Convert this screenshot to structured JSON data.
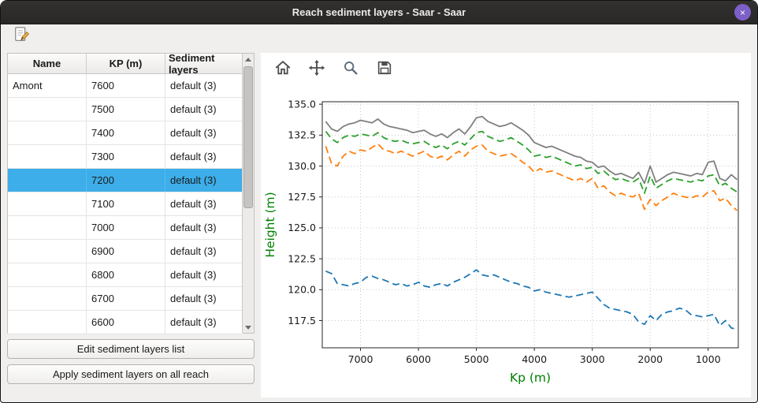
{
  "window": {
    "title": "Reach sediment layers - Saar - Saar",
    "close_glyph": "×"
  },
  "main_toolbar": {
    "edit_icon": "edit-note-icon"
  },
  "table": {
    "columns": [
      "Name",
      "KP (m)",
      "Sediment layers"
    ],
    "selected_index": 4,
    "rows": [
      {
        "name": "Amont",
        "kp": "7600",
        "layers": "default (3)",
        "selected": false
      },
      {
        "name": "",
        "kp": "7500",
        "layers": "default (3)",
        "selected": false
      },
      {
        "name": "",
        "kp": "7400",
        "layers": "default (3)",
        "selected": false
      },
      {
        "name": "",
        "kp": "7300",
        "layers": "default (3)",
        "selected": false
      },
      {
        "name": "",
        "kp": "7200",
        "layers": "default (3)",
        "selected": true
      },
      {
        "name": "",
        "kp": "7100",
        "layers": "default (3)",
        "selected": false
      },
      {
        "name": "",
        "kp": "7000",
        "layers": "default (3)",
        "selected": false
      },
      {
        "name": "",
        "kp": "6900",
        "layers": "default (3)",
        "selected": false
      },
      {
        "name": "",
        "kp": "6800",
        "layers": "default (3)",
        "selected": false
      },
      {
        "name": "",
        "kp": "6700",
        "layers": "default (3)",
        "selected": false
      },
      {
        "name": "",
        "kp": "6600",
        "layers": "default (3)",
        "selected": false
      }
    ]
  },
  "buttons": {
    "edit": "Edit sediment layers list",
    "apply": "Apply sediment layers on all reach"
  },
  "plot_toolbar": {
    "icons": [
      "home-icon",
      "pan-icon",
      "zoom-icon",
      "save-icon"
    ]
  },
  "chart_data": {
    "type": "line",
    "title": "",
    "xlabel": "Kp (m)",
    "ylabel": "Height (m)",
    "axis_label_color": "#008000",
    "tick_label_color": "#1a1a1a",
    "grid": true,
    "x_inverted": true,
    "xlim": [
      7660,
      480
    ],
    "ylim": [
      115.3,
      135.2
    ],
    "x_ticks": [
      7000,
      6000,
      5000,
      4000,
      3000,
      2000,
      1000
    ],
    "y_ticks": [
      117.5,
      120.0,
      122.5,
      125.0,
      127.5,
      130.0,
      132.5,
      135.0
    ],
    "x": [
      7600,
      7500,
      7400,
      7300,
      7200,
      7100,
      7000,
      6900,
      6800,
      6700,
      6600,
      6500,
      6400,
      6300,
      6200,
      6100,
      6000,
      5900,
      5800,
      5700,
      5600,
      5500,
      5400,
      5300,
      5200,
      5100,
      5000,
      4900,
      4800,
      4700,
      4600,
      4500,
      4400,
      4300,
      4200,
      4100,
      4000,
      3900,
      3800,
      3700,
      3600,
      3500,
      3400,
      3300,
      3200,
      3100,
      3000,
      2900,
      2800,
      2700,
      2600,
      2500,
      2400,
      2300,
      2200,
      2100,
      2000,
      1900,
      1800,
      1700,
      1600,
      1500,
      1400,
      1300,
      1200,
      1100,
      1000,
      900,
      800,
      700,
      600,
      500
    ],
    "series": [
      {
        "name": "top-level-gray",
        "color": "#7f7f7f",
        "style": "solid",
        "values": [
          133.6,
          133.0,
          132.8,
          133.2,
          133.4,
          133.5,
          133.7,
          133.6,
          133.5,
          133.8,
          133.4,
          133.2,
          133.1,
          133.0,
          132.9,
          132.7,
          132.8,
          132.9,
          132.6,
          132.4,
          132.6,
          132.3,
          132.7,
          133.0,
          132.6,
          133.2,
          133.9,
          134.0,
          133.6,
          133.4,
          133.2,
          133.3,
          133.5,
          133.2,
          132.9,
          132.5,
          131.9,
          131.7,
          131.5,
          131.6,
          131.4,
          131.2,
          131.0,
          130.8,
          130.7,
          130.4,
          130.3,
          129.9,
          130.0,
          129.6,
          129.3,
          129.4,
          129.2,
          129.0,
          129.5,
          128.6,
          130.0,
          128.7,
          129.0,
          129.3,
          129.5,
          129.4,
          129.3,
          129.2,
          129.4,
          129.3,
          130.3,
          130.4,
          129.0,
          128.8,
          129.3,
          128.9
        ]
      },
      {
        "name": "layer-green",
        "color": "#2ca02c",
        "style": "dashed",
        "values": [
          132.8,
          132.2,
          131.9,
          132.3,
          132.5,
          132.4,
          132.6,
          132.5,
          132.4,
          132.7,
          132.3,
          132.1,
          132.0,
          132.1,
          131.9,
          131.8,
          131.9,
          132.0,
          131.7,
          131.5,
          131.7,
          131.4,
          131.8,
          132.0,
          131.7,
          132.2,
          132.7,
          132.8,
          132.4,
          132.2,
          132.0,
          132.1,
          132.3,
          132.0,
          131.7,
          131.3,
          130.8,
          130.9,
          130.7,
          130.8,
          130.6,
          130.4,
          130.2,
          130.0,
          130.1,
          129.8,
          129.9,
          129.4,
          129.6,
          129.2,
          128.9,
          129.0,
          128.8,
          128.7,
          129.0,
          127.8,
          129.2,
          128.2,
          128.5,
          128.8,
          129.0,
          128.9,
          128.8,
          128.7,
          128.9,
          128.8,
          129.2,
          129.3,
          128.4,
          128.6,
          128.2,
          127.9
        ]
      },
      {
        "name": "layer-orange",
        "color": "#ff7f0e",
        "style": "dashed",
        "values": [
          131.6,
          130.2,
          130.0,
          130.8,
          131.2,
          131.0,
          131.3,
          131.2,
          131.5,
          131.8,
          131.3,
          131.2,
          131.0,
          131.2,
          131.0,
          130.8,
          131.0,
          131.2,
          130.8,
          130.6,
          130.8,
          130.5,
          130.9,
          131.2,
          130.8,
          131.3,
          131.6,
          131.7,
          131.2,
          131.0,
          130.8,
          130.9,
          131.0,
          130.7,
          130.3,
          130.0,
          129.5,
          129.8,
          129.5,
          129.6,
          129.4,
          129.2,
          129.0,
          128.8,
          129.0,
          128.7,
          129.0,
          128.2,
          128.4,
          127.9,
          127.6,
          127.8,
          127.6,
          127.5,
          127.8,
          126.5,
          127.3,
          126.8,
          127.2,
          127.5,
          127.8,
          127.6,
          127.5,
          127.4,
          127.6,
          127.5,
          127.9,
          128.0,
          127.2,
          127.4,
          126.8,
          126.4
        ]
      },
      {
        "name": "layer-blue",
        "color": "#1f77b4",
        "style": "dashed",
        "values": [
          121.5,
          121.3,
          120.5,
          120.4,
          120.3,
          120.5,
          120.6,
          121.0,
          121.1,
          120.9,
          120.8,
          120.6,
          120.4,
          120.5,
          120.3,
          120.4,
          120.6,
          120.3,
          120.2,
          120.4,
          120.5,
          120.3,
          120.6,
          120.8,
          121.0,
          121.3,
          121.6,
          121.2,
          121.1,
          121.2,
          121.0,
          120.8,
          120.6,
          120.5,
          120.3,
          120.2,
          119.9,
          120.0,
          119.8,
          119.7,
          119.6,
          119.5,
          119.4,
          119.5,
          119.6,
          119.7,
          119.8,
          119.3,
          118.8,
          118.5,
          118.4,
          118.3,
          118.2,
          118.0,
          117.4,
          117.2,
          117.9,
          117.5,
          118.0,
          118.2,
          118.3,
          118.5,
          118.4,
          118.0,
          117.9,
          117.8,
          117.9,
          118.0,
          117.1,
          117.5,
          116.9,
          116.8
        ]
      }
    ]
  }
}
